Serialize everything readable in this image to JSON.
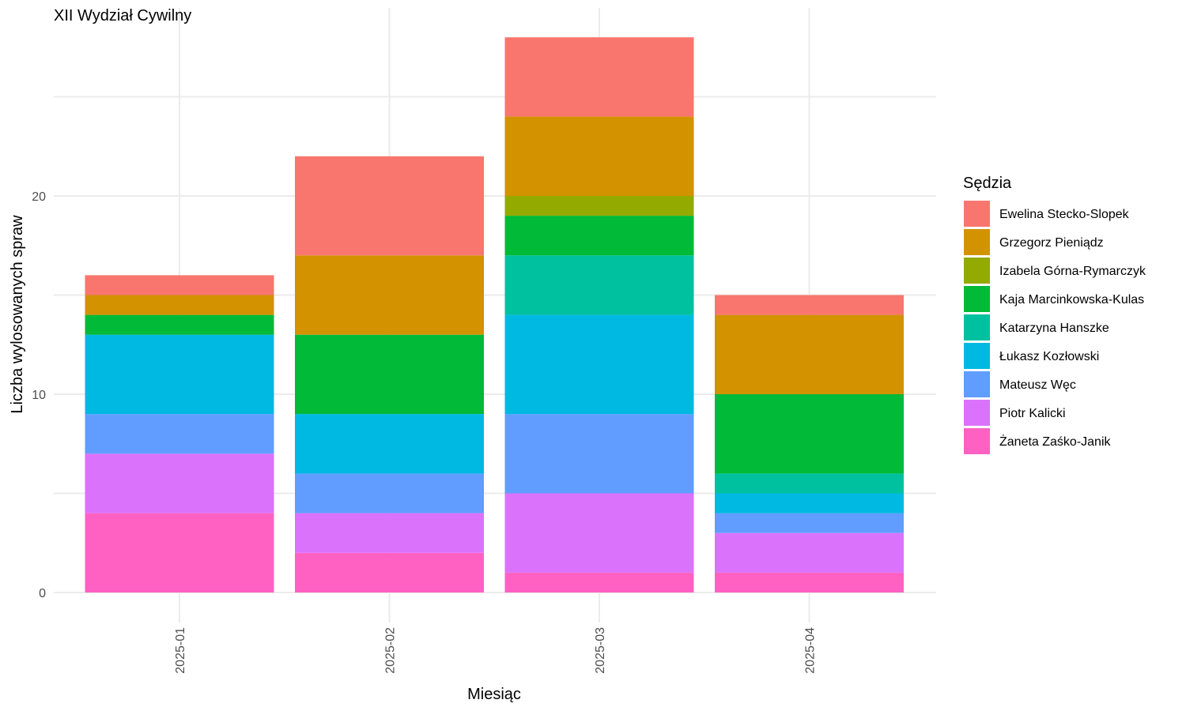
{
  "chart_data": {
    "type": "bar",
    "stacked": true,
    "title": "XII Wydział Cywilny",
    "xlabel": "Miesiąc",
    "ylabel": "Liczba wylosowanych spraw",
    "categories": [
      "2025-01",
      "2025-02",
      "2025-03",
      "2025-04"
    ],
    "ylim": [
      0,
      28
    ],
    "yticks": [
      0,
      10,
      20
    ],
    "grid": true,
    "legend": {
      "title": "Sędzia",
      "position": "right"
    },
    "series": [
      {
        "name": "Ewelina Stecko-Slopek",
        "color": "#F8766D",
        "values": [
          1,
          5,
          4,
          1
        ]
      },
      {
        "name": "Grzegorz Pieniądz",
        "color": "#D39200",
        "values": [
          1,
          4,
          4,
          4
        ]
      },
      {
        "name": "Izabela Górna-Rymarczyk",
        "color": "#93AA00",
        "values": [
          0,
          0,
          1,
          0
        ]
      },
      {
        "name": "Kaja Marcinkowska-Kulas",
        "color": "#00BA38",
        "values": [
          1,
          4,
          2,
          4
        ]
      },
      {
        "name": "Katarzyna Hanszke",
        "color": "#00C19F",
        "values": [
          0,
          0,
          3,
          1
        ]
      },
      {
        "name": "Łukasz Kozłowski",
        "color": "#00B9E3",
        "values": [
          4,
          3,
          5,
          1
        ]
      },
      {
        "name": "Mateusz Węc",
        "color": "#619CFF",
        "values": [
          2,
          2,
          4,
          1
        ]
      },
      {
        "name": "Piotr Kalicki",
        "color": "#DB72FB",
        "values": [
          3,
          2,
          4,
          2
        ]
      },
      {
        "name": "Żaneta Zaśko-Janik",
        "color": "#FF61C3",
        "values": [
          4,
          2,
          1,
          1
        ]
      }
    ]
  }
}
